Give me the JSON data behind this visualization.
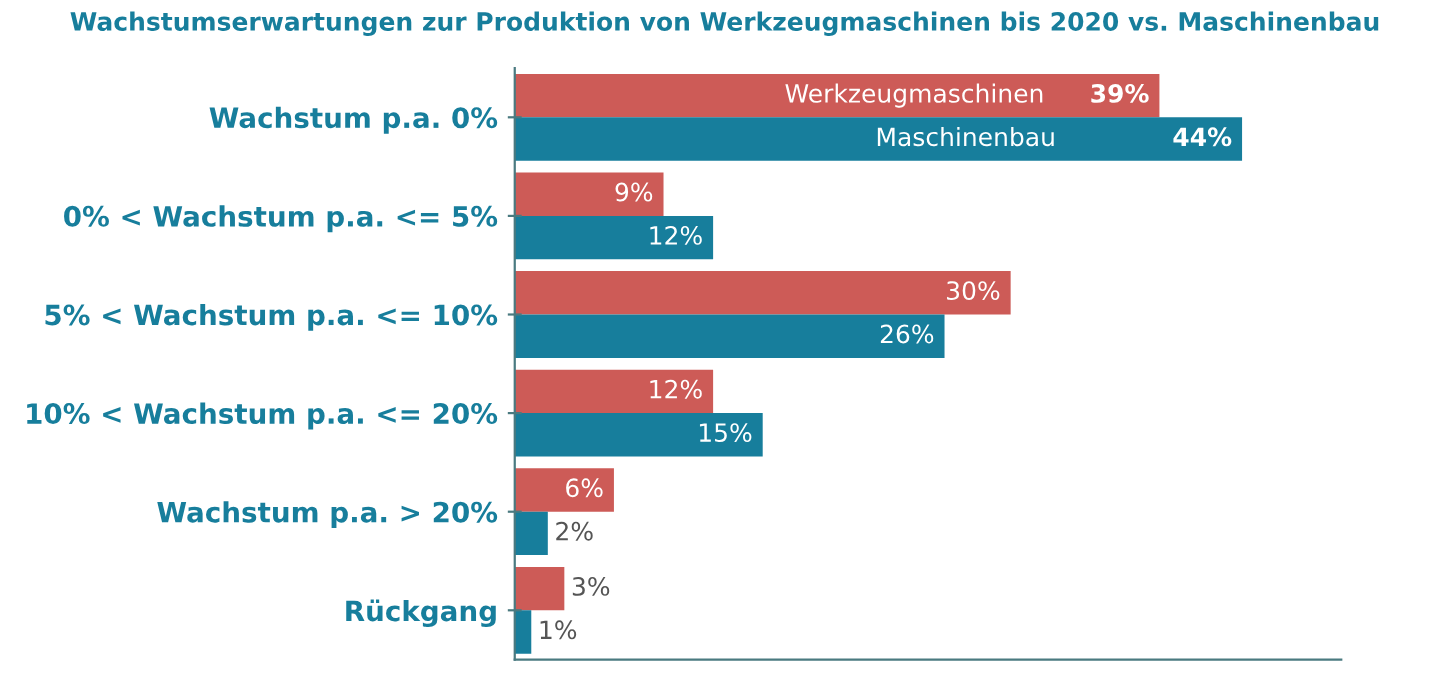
{
  "chart_data": {
    "type": "bar",
    "orientation": "horizontal",
    "title": "Wachstumserwartungen zur Produktion von Werkzeugmaschinen bis 2020 vs. Maschinenbau",
    "categories": [
      "Wachstum p.a. 0%",
      "0% < Wachstum p.a. <= 5%",
      "5% < Wachstum p.a. <= 10%",
      "10% < Wachstum p.a. <= 20%",
      "Wachstum p.a. > 20%",
      "Rückgang"
    ],
    "series": [
      {
        "name": "Werkzeugmaschinen",
        "color": "#cd5b57",
        "values": [
          39,
          9,
          30,
          12,
          6,
          3
        ],
        "value_labels": [
          "39%",
          "9%",
          "30%",
          "12%",
          "6%",
          "3%"
        ]
      },
      {
        "name": "Maschinenbau",
        "color": "#177e9c",
        "values": [
          44,
          12,
          26,
          15,
          2,
          1
        ],
        "value_labels": [
          "44%",
          "12%",
          "26%",
          "15%",
          "2%",
          "1%"
        ]
      }
    ],
    "xlim": [
      0,
      50
    ],
    "grid": false,
    "legend": false
  }
}
